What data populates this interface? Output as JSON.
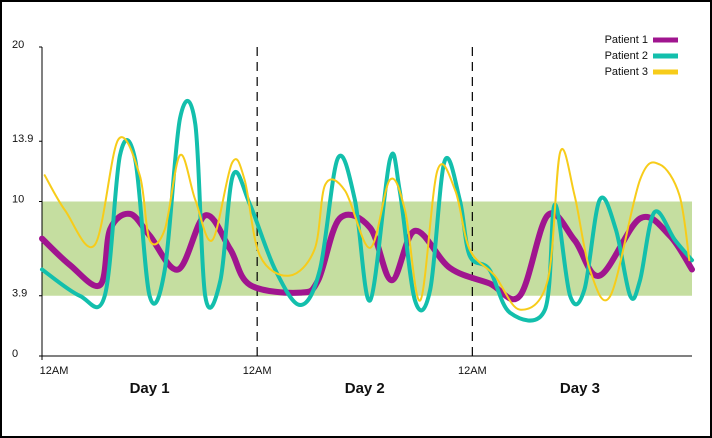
{
  "chart_data": {
    "type": "line",
    "xlim": [
      0,
      72.5
    ],
    "ylim": [
      0,
      20
    ],
    "yticks": [
      0,
      3.9,
      10,
      13.9,
      20
    ],
    "xticks": [
      {
        "value": 0,
        "label": "12AM"
      },
      {
        "value": 24,
        "label": "12AM"
      },
      {
        "value": 48,
        "label": "12AM"
      }
    ],
    "day_labels": [
      "Day 1",
      "Day 2",
      "Day 3"
    ],
    "target_range": [
      3.9,
      10
    ],
    "target_color": "#c5dea0",
    "legend": "top-right",
    "series": [
      {
        "name": "Patient 1",
        "color": "#a0158f",
        "width": 6,
        "x": [
          0,
          3.1,
          6.5,
          7.6,
          9.8,
          12,
          15.2,
          18.2,
          21,
          23.2,
          28.8,
          30.8,
          33.2,
          36.6,
          39,
          41.6,
          45.5,
          49.9,
          53.3,
          56.4,
          59.4,
          62.2,
          66.7,
          70,
          72.5
        ],
        "values": [
          7.6,
          5.9,
          4.6,
          8.2,
          9.2,
          7.8,
          5.6,
          9.1,
          6.9,
          4.6,
          4.1,
          4.9,
          8.9,
          8.3,
          4.9,
          8.1,
          5.7,
          4.7,
          3.9,
          9.1,
          7.5,
          5.2,
          8.9,
          7.8,
          5.6
        ]
      },
      {
        "name": "Patient 2",
        "color": "#13bfac",
        "width": 4,
        "x": [
          0,
          4.2,
          7,
          8.7,
          10.4,
          12,
          13.7,
          15.4,
          17.1,
          18.2,
          19.9,
          21.3,
          23.2,
          26,
          28.8,
          31,
          33,
          34.9,
          36.6,
          38.8,
          39.9,
          41.6,
          43.3,
          44.9,
          46.6,
          47.7,
          49.9,
          52.2,
          56.1,
          57.2,
          58.9,
          60.5,
          62.2,
          64,
          65.6,
          66.7,
          68.3,
          70.6,
          72.5
        ],
        "values": [
          5.6,
          3.9,
          3.9,
          13,
          12.7,
          3.9,
          5.6,
          15.4,
          15,
          3.9,
          4.9,
          11.7,
          9.8,
          5.6,
          3.3,
          5.6,
          12.8,
          10.1,
          3.6,
          12.7,
          10.7,
          3.6,
          4.3,
          12.6,
          10.1,
          6.5,
          5.6,
          2.8,
          3,
          9.8,
          3.9,
          4.3,
          10.1,
          8.2,
          3.9,
          4.9,
          9.3,
          7.5,
          6.2
        ]
      },
      {
        "name": "Patient 3",
        "color": "#f7cc1a",
        "width": 2,
        "x": [
          0.3,
          2.6,
          5.9,
          8.5,
          10.9,
          12,
          13.7,
          15.4,
          17.1,
          19,
          21.2,
          22.6,
          24.3,
          27.6,
          30.4,
          31.6,
          33.8,
          36.6,
          38.8,
          40.5,
          42.2,
          44.1,
          46.1,
          47.7,
          50.5,
          53.3,
          56.4,
          57.8,
          59.4,
          61.1,
          63.4,
          66.7,
          68.9,
          71.1,
          72.2
        ],
        "values": [
          11.7,
          9.4,
          7.2,
          14,
          11.7,
          7.5,
          8.2,
          13,
          10.1,
          7.5,
          12.5,
          11.4,
          6.5,
          5.2,
          6.9,
          11.1,
          10.7,
          7,
          11.4,
          9.4,
          3.6,
          12,
          10.7,
          6.9,
          5.2,
          3,
          4.9,
          13.2,
          10.4,
          5.6,
          3.9,
          11.4,
          12.4,
          10.4,
          6.2
        ]
      }
    ]
  }
}
